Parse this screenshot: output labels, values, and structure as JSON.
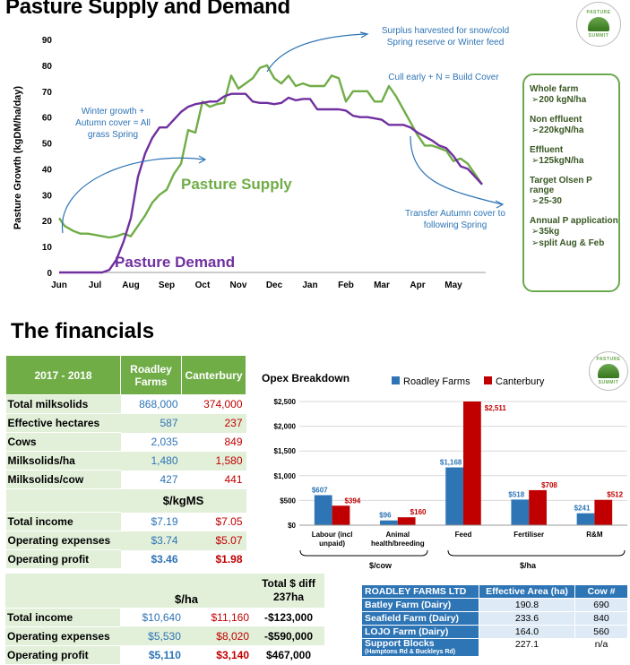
{
  "titles": {
    "main": "Pasture Supply and Demand",
    "financials": "The financials"
  },
  "logo_text": {
    "top": "PASTURE",
    "bottom": "SUMMIT"
  },
  "chart_data": [
    {
      "type": "line",
      "ylabel": "Pasture Growth (kgDM/ha/day)",
      "ylim": [
        0,
        90
      ],
      "yticks": [
        0,
        10,
        20,
        30,
        40,
        50,
        60,
        70,
        80,
        90
      ],
      "x_labels": [
        "Jun",
        "Jul",
        "Aug",
        "Sep",
        "Oct",
        "Nov",
        "Dec",
        "Jan",
        "Feb",
        "Mar",
        "Apr",
        "May"
      ],
      "x_range": [
        0,
        11.8
      ],
      "series": [
        {
          "name": "Pasture Supply",
          "color": "#70ad47",
          "x": [
            0,
            0.15,
            0.4,
            0.6,
            0.8,
            1.0,
            1.2,
            1.4,
            1.6,
            1.8,
            2.0,
            2.2,
            2.4,
            2.6,
            2.8,
            3.0,
            3.2,
            3.4,
            3.6,
            3.8,
            4.0,
            4.2,
            4.4,
            4.6,
            4.8,
            5.0,
            5.2,
            5.4,
            5.6,
            5.8,
            6.0,
            6.2,
            6.4,
            6.6,
            6.8,
            7.0,
            7.2,
            7.4,
            7.6,
            7.8,
            8.0,
            8.2,
            8.4,
            8.6,
            8.8,
            9.0,
            9.2,
            9.4,
            9.6,
            9.8,
            10.0,
            10.2,
            10.4,
            10.6,
            10.8,
            11.0,
            11.2,
            11.4,
            11.6,
            11.8
          ],
          "values": [
            21,
            18,
            16,
            15,
            15,
            14.5,
            14,
            13.5,
            14,
            15,
            14,
            18,
            22,
            27,
            30,
            32,
            38,
            42,
            55,
            54,
            66,
            64,
            65,
            65.5,
            76,
            71,
            73,
            75,
            79,
            80,
            75,
            73,
            76,
            72,
            73,
            72,
            72,
            72,
            76,
            75,
            66,
            70,
            70,
            70,
            66,
            66,
            72,
            68,
            63,
            58,
            53,
            49,
            49,
            48,
            47,
            43,
            44,
            42,
            38,
            34
          ]
        },
        {
          "name": "Pasture Demand",
          "color": "#7030a0",
          "x": [
            0,
            0.4,
            0.8,
            1.2,
            1.4,
            1.6,
            1.8,
            2.0,
            2.2,
            2.4,
            2.6,
            2.8,
            3.0,
            3.2,
            3.4,
            3.6,
            3.8,
            4.0,
            4.2,
            4.4,
            4.6,
            4.8,
            5.0,
            5.2,
            5.4,
            5.6,
            5.8,
            6.0,
            6.2,
            6.4,
            6.6,
            6.8,
            7.0,
            7.2,
            7.4,
            7.6,
            7.8,
            8.0,
            8.2,
            8.4,
            8.6,
            8.8,
            9.0,
            9.2,
            9.4,
            9.6,
            9.8,
            10.0,
            10.2,
            10.4,
            10.6,
            10.8,
            11.0,
            11.2,
            11.4,
            11.6,
            11.8
          ],
          "values": [
            0,
            0,
            0,
            0,
            1,
            5,
            12,
            21,
            37,
            46,
            52,
            56,
            56,
            59,
            62,
            64,
            65,
            65.5,
            66,
            66,
            68,
            69,
            69,
            69,
            66,
            65.5,
            65.5,
            65,
            65.5,
            67.5,
            66.5,
            67,
            67,
            63,
            63,
            63,
            63,
            62.5,
            60.5,
            60,
            60,
            59.5,
            59,
            57,
            57,
            57,
            56,
            54,
            52.5,
            51,
            49,
            48,
            45,
            41,
            40,
            37,
            34
          ]
        }
      ],
      "annotations": [
        "Surplus harvested for snow/cold Spring reserve or Winter feed",
        "Cull early + N = Build Cover",
        "Winter growth + Autumn cover = All grass Spring",
        "Transfer Autumn cover to following Spring"
      ]
    },
    {
      "type": "bar",
      "title": "Opex Breakdown",
      "categories": [
        "Labour (incl unpaid)",
        "Animal health/breeding",
        "Feed",
        "Fertiliser",
        "R&M"
      ],
      "ylim": [
        0,
        2500
      ],
      "yticks": [
        "$0",
        "$500",
        "$1,000",
        "$1,500",
        "$2,000",
        "$2,500"
      ],
      "series": [
        {
          "name": "Roadley Farms",
          "color": "#2e75b6",
          "values": [
            607,
            96,
            1168,
            518,
            241
          ],
          "labels": [
            "$607",
            "$96",
            "$1,168",
            "$518",
            "$241"
          ]
        },
        {
          "name": "Canterbury",
          "color": "#c00000",
          "values": [
            394,
            160,
            2511,
            708,
            512
          ],
          "labels": [
            "$394",
            "$160",
            "$2,511",
            "$708",
            "$512"
          ]
        }
      ],
      "group_labels": [
        "$/cow",
        "$/ha"
      ]
    }
  ],
  "side_panel": [
    {
      "heading": "Whole farm",
      "item": "200 kgN/ha"
    },
    {
      "heading": "Non effluent",
      "item": "220kgN/ha"
    },
    {
      "heading": "Effluent",
      "item": "125kgN/ha"
    },
    {
      "heading": "Target Olsen P range",
      "item": "25-30"
    },
    {
      "heading": "Annual P application",
      "items": [
        "35kg",
        "split Aug & Feb"
      ]
    }
  ],
  "financials": {
    "header": [
      "2017 - 2018",
      "Roadley Farms",
      "Canterbury"
    ],
    "rows1": [
      [
        "Total milksolids",
        "868,000",
        "374,000"
      ],
      [
        "Effective hectares",
        "587",
        "237"
      ],
      [
        "Cows",
        "2,035",
        "849"
      ],
      [
        "Milksolids/ha",
        "1,480",
        "1,580"
      ],
      [
        "Milksolids/cow",
        "427",
        "441"
      ]
    ],
    "unit1": "$/kgMS",
    "rows2": [
      [
        "Total income",
        "$7.19",
        "$7.05"
      ],
      [
        "Operating expenses",
        "$3.74",
        "$5.07"
      ],
      [
        "Operating profit",
        "$3.46",
        "$1.98"
      ]
    ],
    "unit2": "$/ha",
    "diff_header": "Total $ diff 237ha",
    "rows3": [
      [
        "Total income",
        "$10,640",
        "$11,160",
        "-$123,000"
      ],
      [
        "Operating expenses",
        "$5,530",
        "$8,020",
        "-$590,000"
      ],
      [
        "Operating profit",
        "$5,110",
        "$3,140",
        "$467,000"
      ]
    ]
  },
  "farms": {
    "header": [
      "ROADLEY FARMS LTD",
      "Effective Area (ha)",
      "Cow #"
    ],
    "rows": [
      [
        "Batley Farm (Dairy)",
        "190.8",
        "690"
      ],
      [
        "Seafield Farm (Dairy)",
        "233.6",
        "840"
      ],
      [
        "LOJO Farm (Dairy)",
        "164.0",
        "560"
      ]
    ],
    "support": {
      "name": "Support Blocks",
      "detail": "(Hamptons Rd & Buckleys Rd)",
      "area": "227.1",
      "cows": "n/a"
    }
  }
}
